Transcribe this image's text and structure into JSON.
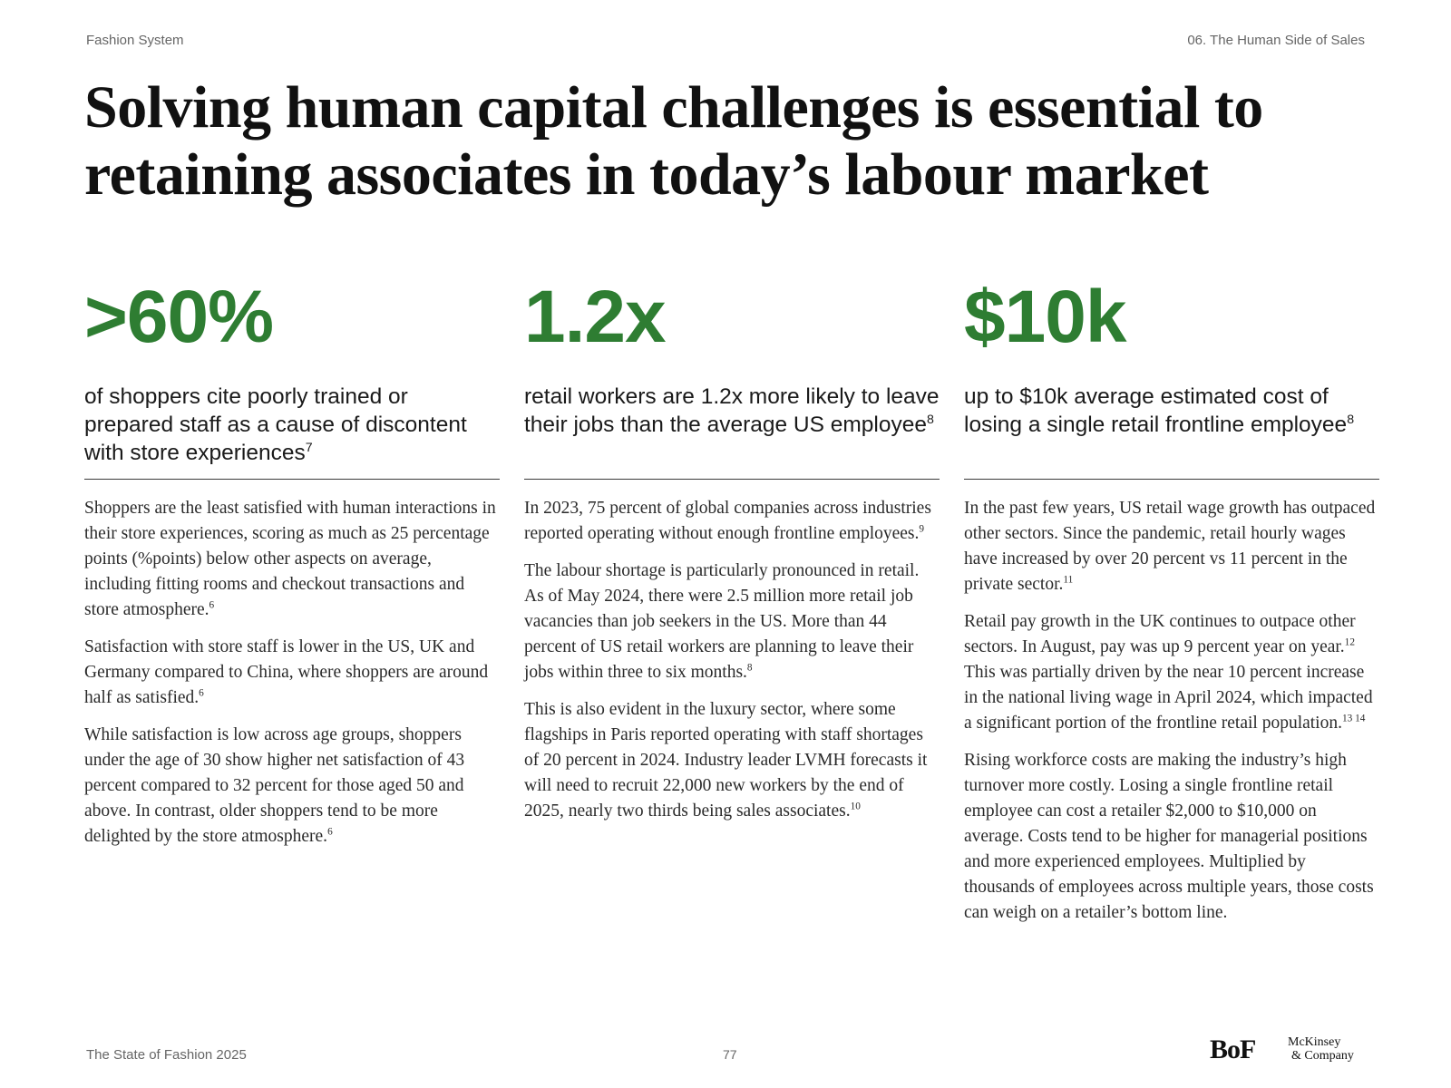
{
  "header": {
    "left": "Fashion System",
    "right": "06. The Human Side of Sales"
  },
  "title": "Solving human capital challenges is essential to retaining associates in today’s labour market",
  "accent_color": "#2e7d32",
  "columns": [
    {
      "stat": ">60%",
      "lede": "of shoppers cite poorly trained or prepared staff as a cause of discontent with store experiences",
      "lede_ref": "7",
      "paragraphs": [
        {
          "text": "Shoppers are the least satisfied with human interactions in their store experiences, scoring as much as 25 percentage points (%points) below other aspects on average, including fitting rooms and checkout transactions and store atmosphere.",
          "ref": "6"
        },
        {
          "text": "Satisfaction with store staff is lower in the US, UK and Germany compared to China, where shoppers are around half as satisfied.",
          "ref": "6"
        },
        {
          "text": "While satisfaction is low across age groups, shoppers under the age of 30 show higher net satisfaction of 43 percent compared to 32 percent for those aged 50 and above. In contrast, older shoppers tend to be more delighted by the store atmosphere.",
          "ref": "6"
        }
      ]
    },
    {
      "stat": "1.2x",
      "lede": "retail workers are 1.2x more likely to leave their jobs than the average US employee",
      "lede_ref": "8",
      "paragraphs": [
        {
          "text": "In 2023, 75 percent of global companies across industries reported operating without enough frontline employees.",
          "ref": "9"
        },
        {
          "text": "The labour shortage is particularly pronounced in retail. As of May 2024, there were 2.5 million more retail job vacancies than job seekers in the US. More than 44 percent of US retail workers are planning to leave their jobs within three to six months.",
          "ref": "8"
        },
        {
          "text": "This is also evident in the luxury sector, where some flagships in Paris reported operating with staff shortages of 20 percent in 2024. Industry leader LVMH forecasts it will need to recruit 22,000 new workers by the end of 2025, nearly two thirds being sales associates.",
          "ref": "10"
        }
      ]
    },
    {
      "stat": "$10k",
      "lede": "up to $10k average estimated cost of losing a single retail frontline employee",
      "lede_ref": "8",
      "paragraphs": [
        {
          "text": "In the past few years, US retail wage growth has outpaced other sectors. Since the pandemic, retail hourly wages have increased by over 20 percent vs 11 percent in the private sector.",
          "ref": "11"
        },
        {
          "text": "Retail pay growth in the UK continues to outpace other sectors. In August, pay was up 9 percent year on year.",
          "ref": "12",
          "text2": " This was partially driven by the near 10 percent increase in the national living wage in April 2024, which impacted a significant portion of the frontline retail population.",
          "ref2": "13 14"
        },
        {
          "text": "Rising workforce costs are making the industry’s high turnover more costly. Losing a single frontline retail employee can cost a retailer $2,000 to $10,000 on average. Costs tend to be higher for managerial positions and more experienced employees. Multiplied by thousands of employees across multiple years, those costs can weigh on a retailer’s bottom line."
        }
      ]
    }
  ],
  "footer": {
    "left": "The State of Fashion 2025",
    "page_number": "77",
    "logo_bof": "BoF",
    "logo_mckinsey_line1": "McKinsey",
    "logo_mckinsey_line2": "& Company"
  }
}
